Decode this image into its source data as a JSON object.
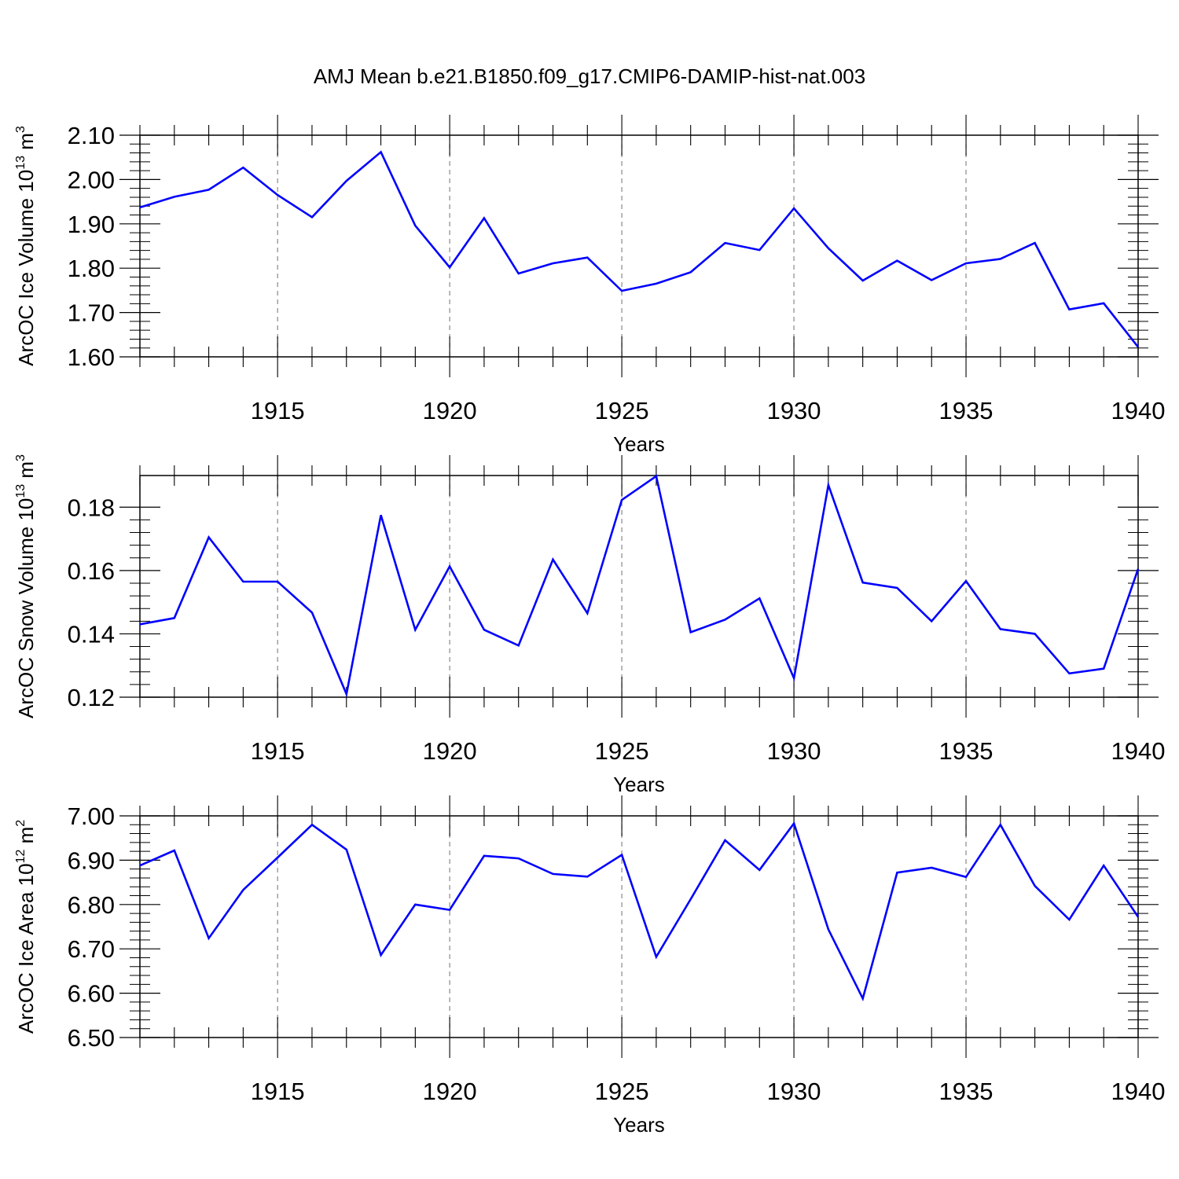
{
  "title": "AMJ Mean b.e21.B1850.f09_g17.CMIP6-DAMIP-hist-nat.003",
  "colors": {
    "line": "#0000ff",
    "axis": "#000000",
    "grid": "#888888"
  },
  "chart_data": [
    {
      "type": "line",
      "ylabel": {
        "prefix": "ArcOC Ice Volume 10",
        "exp": "13",
        "unit": " m",
        "unit_exp": "3"
      },
      "xlabel": "Years",
      "xlim": [
        1911,
        1940
      ],
      "ylim": [
        1.6,
        2.1
      ],
      "yticks": [
        "1.60",
        "1.70",
        "1.80",
        "1.90",
        "2.00",
        "2.10"
      ],
      "xticks": [
        "1915",
        "1920",
        "1925",
        "1930",
        "1935",
        "1940"
      ],
      "x": [
        1911,
        1912,
        1913,
        1914,
        1915,
        1916,
        1917,
        1918,
        1919,
        1920,
        1921,
        1922,
        1923,
        1924,
        1925,
        1926,
        1927,
        1928,
        1929,
        1930,
        1931,
        1932,
        1933,
        1934,
        1935,
        1936,
        1937,
        1938,
        1939,
        1940
      ],
      "values": [
        1.937,
        1.961,
        1.977,
        2.027,
        1.965,
        1.915,
        1.997,
        2.062,
        1.896,
        1.802,
        1.913,
        1.788,
        1.811,
        1.824,
        1.749,
        1.765,
        1.791,
        1.857,
        1.841,
        1.935,
        1.845,
        1.772,
        1.817,
        1.773,
        1.811,
        1.821,
        1.857,
        1.707,
        1.721,
        1.622
      ]
    },
    {
      "type": "line",
      "ylabel": {
        "prefix": "ArcOC Snow Volume 10",
        "exp": "13",
        "unit": " m",
        "unit_exp": "3"
      },
      "xlabel": "Years",
      "xlim": [
        1911,
        1940
      ],
      "ylim": [
        0.12,
        0.19
      ],
      "yticks": [
        "0.12",
        "0.14",
        "0.16",
        "0.18"
      ],
      "xticks": [
        "1915",
        "1920",
        "1925",
        "1930",
        "1935",
        "1940"
      ],
      "x": [
        1911,
        1912,
        1913,
        1914,
        1915,
        1916,
        1917,
        1918,
        1919,
        1920,
        1921,
        1922,
        1923,
        1924,
        1925,
        1926,
        1927,
        1928,
        1929,
        1930,
        1931,
        1932,
        1933,
        1934,
        1935,
        1936,
        1937,
        1938,
        1939,
        1940
      ],
      "values": [
        0.143,
        0.145,
        0.1705,
        0.1565,
        0.1565,
        0.1467,
        0.121,
        0.1775,
        0.1413,
        0.1613,
        0.1413,
        0.1363,
        0.1635,
        0.1465,
        0.1823,
        0.1898,
        0.1405,
        0.1445,
        0.1512,
        0.126,
        0.187,
        0.1562,
        0.1545,
        0.144,
        0.1567,
        0.1415,
        0.14,
        0.1275,
        0.129,
        0.1605
      ]
    },
    {
      "type": "line",
      "ylabel": {
        "prefix": "ArcOC Ice Area 10",
        "exp": "12",
        "unit": " m",
        "unit_exp": "2"
      },
      "xlabel": "Years",
      "xlim": [
        1911,
        1940
      ],
      "ylim": [
        6.5,
        7.0
      ],
      "yticks": [
        "6.50",
        "6.60",
        "6.70",
        "6.80",
        "6.90",
        "7.00"
      ],
      "xticks": [
        "1915",
        "1920",
        "1925",
        "1930",
        "1935",
        "1940"
      ],
      "x": [
        1911,
        1912,
        1913,
        1914,
        1915,
        1916,
        1917,
        1918,
        1919,
        1920,
        1921,
        1922,
        1923,
        1924,
        1925,
        1926,
        1927,
        1928,
        1929,
        1930,
        1931,
        1932,
        1933,
        1934,
        1935,
        1936,
        1937,
        1938,
        1939,
        1940
      ],
      "values": [
        6.888,
        6.922,
        6.724,
        6.833,
        6.906,
        6.98,
        6.924,
        6.686,
        6.8,
        6.788,
        6.91,
        6.904,
        6.869,
        6.863,
        6.912,
        6.682,
        6.812,
        6.945,
        6.878,
        6.983,
        6.744,
        6.588,
        6.872,
        6.883,
        6.862,
        6.98,
        6.842,
        6.766,
        6.888,
        6.772
      ]
    }
  ]
}
